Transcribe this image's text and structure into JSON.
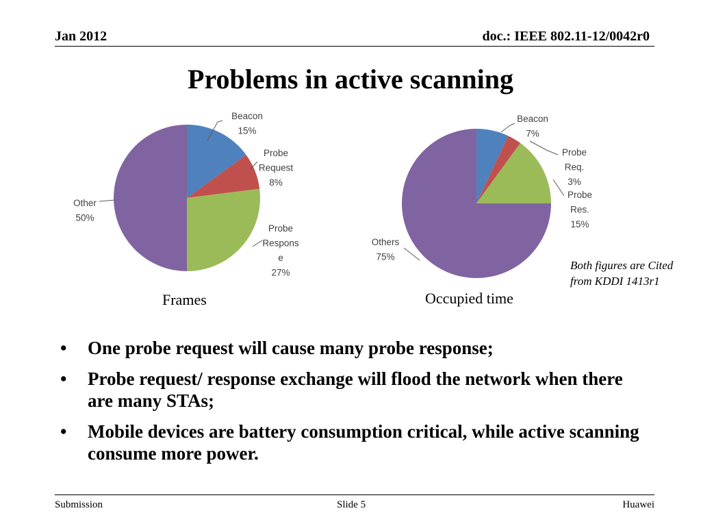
{
  "header": {
    "date": "Jan 2012",
    "doc": "doc.: IEEE 802.11-12/0042r0"
  },
  "title": "Problems in active scanning",
  "chart_data": [
    {
      "type": "pie",
      "caption": "Frames",
      "slices": [
        {
          "name": "Beacon",
          "value": 15,
          "label_lines": [
            "Beacon",
            "15%"
          ],
          "color": "#4f81bd"
        },
        {
          "name": "Probe Request",
          "value": 8,
          "label_lines": [
            "Probe",
            "Request",
            "8%"
          ],
          "color": "#c0504d"
        },
        {
          "name": "Probe Response",
          "value": 27,
          "label_lines": [
            "Probe",
            "Respons",
            "e",
            "27%"
          ],
          "color": "#9bbb59"
        },
        {
          "name": "Other",
          "value": 50,
          "label_lines": [
            "Other",
            "50%"
          ],
          "color": "#8064a2"
        }
      ]
    },
    {
      "type": "pie",
      "caption": "Occupied time",
      "slices": [
        {
          "name": "Beacon",
          "value": 7,
          "label_lines": [
            "Beacon",
            "7%"
          ],
          "color": "#4f81bd"
        },
        {
          "name": "Probe Req.",
          "value": 3,
          "label_lines": [
            "Probe",
            "Req.",
            "3%"
          ],
          "color": "#c0504d"
        },
        {
          "name": "Probe Res.",
          "value": 15,
          "label_lines": [
            "Probe",
            "Res.",
            "15%"
          ],
          "color": "#9bbb59"
        },
        {
          "name": "Others",
          "value": 75,
          "label_lines": [
            "Others",
            "75%"
          ],
          "color": "#8064a2"
        }
      ]
    }
  ],
  "note": "Both figures are Cited from KDDI 1413r1",
  "bullet_glyph": "•",
  "bullets": [
    "One probe request will cause many probe response;",
    "Probe request/ response exchange will flood the network when there are many STAs;",
    "Mobile devices are battery consumption critical, while active scanning consume more power."
  ],
  "footer": {
    "left": "Submission",
    "center": "Slide 5",
    "right": "Huawei"
  }
}
